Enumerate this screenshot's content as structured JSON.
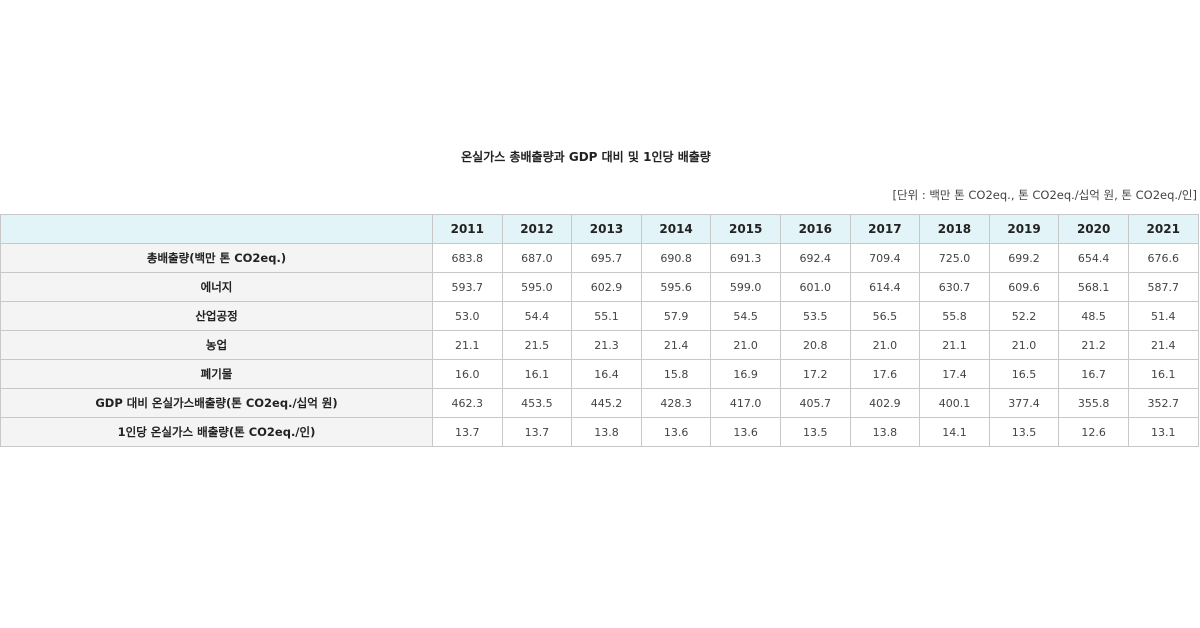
{
  "title": "온실가스 총배출량과 GDP 대비 및 1인당 배출량",
  "unit_note": "[단위 : 백만 톤 CO2eq., 톤 CO2eq./십억 원, 톤 CO2eq./인]",
  "colors": {
    "header_bg": "#e3f4f8",
    "row_label_bg": "#f4f4f4",
    "border": "#c8c8c8"
  },
  "chart_data": {
    "type": "table",
    "title": "온실가스 총배출량과 GDP 대비 및 1인당 배출량",
    "columns": [
      "2011",
      "2012",
      "2013",
      "2014",
      "2015",
      "2016",
      "2017",
      "2018",
      "2019",
      "2020",
      "2021"
    ],
    "rows": [
      {
        "label": "총배출량(백만 톤 CO2eq.)",
        "values": [
          "683.8",
          "687.0",
          "695.7",
          "690.8",
          "691.3",
          "692.4",
          "709.4",
          "725.0",
          "699.2",
          "654.4",
          "676.6"
        ]
      },
      {
        "label": "에너지",
        "values": [
          "593.7",
          "595.0",
          "602.9",
          "595.6",
          "599.0",
          "601.0",
          "614.4",
          "630.7",
          "609.6",
          "568.1",
          "587.7"
        ]
      },
      {
        "label": "산업공정",
        "values": [
          "53.0",
          "54.4",
          "55.1",
          "57.9",
          "54.5",
          "53.5",
          "56.5",
          "55.8",
          "52.2",
          "48.5",
          "51.4"
        ]
      },
      {
        "label": "농업",
        "values": [
          "21.1",
          "21.5",
          "21.3",
          "21.4",
          "21.0",
          "20.8",
          "21.0",
          "21.1",
          "21.0",
          "21.2",
          "21.4"
        ]
      },
      {
        "label": "폐기물",
        "values": [
          "16.0",
          "16.1",
          "16.4",
          "15.8",
          "16.9",
          "17.2",
          "17.6",
          "17.4",
          "16.5",
          "16.7",
          "16.1"
        ]
      },
      {
        "label": "GDP 대비 온실가스배출량(톤 CO2eq./십억 원)",
        "values": [
          "462.3",
          "453.5",
          "445.2",
          "428.3",
          "417.0",
          "405.7",
          "402.9",
          "400.1",
          "377.4",
          "355.8",
          "352.7"
        ]
      },
      {
        "label": "1인당 온실가스 배출량(톤 CO2eq./인)",
        "values": [
          "13.7",
          "13.7",
          "13.8",
          "13.6",
          "13.6",
          "13.5",
          "13.8",
          "14.1",
          "13.5",
          "12.6",
          "13.1"
        ]
      }
    ]
  }
}
